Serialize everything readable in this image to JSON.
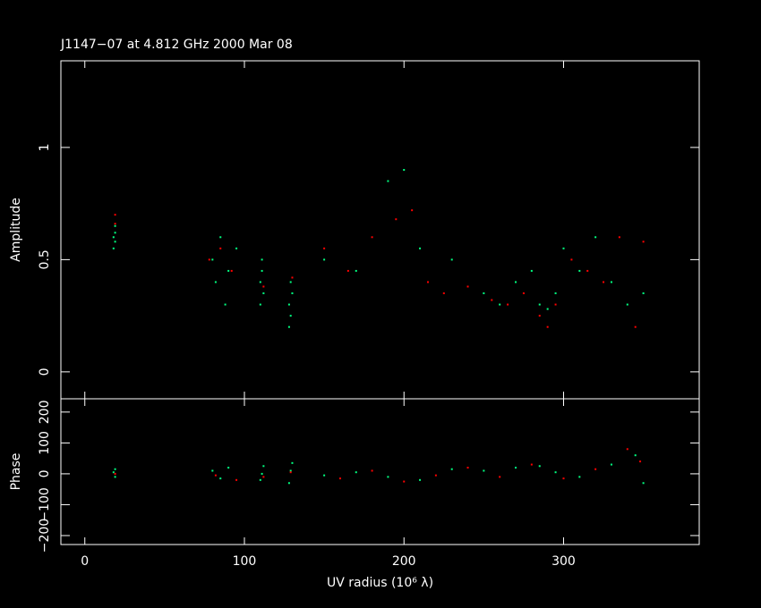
{
  "chart_data": [
    {
      "type": "scatter",
      "title": "J1147−07 at 4.812 GHz 2000 Mar 08",
      "y_label": "Amplitude",
      "xlim": [
        -15,
        385
      ],
      "xticks": [
        0,
        100,
        200,
        300
      ],
      "ylim": [
        -0.12,
        1.386
      ],
      "yticks": [
        0,
        0.5,
        1
      ],
      "series": [
        {
          "color": "#00ff80",
          "x": [
            18,
            18,
            19,
            19,
            19,
            80,
            82,
            85,
            88,
            90,
            95,
            110,
            110,
            111,
            111,
            112,
            128,
            128,
            129,
            129,
            130,
            150,
            170,
            190,
            200,
            210,
            230,
            250,
            260,
            270,
            280,
            285,
            290,
            295,
            300,
            310,
            320,
            330,
            340,
            350
          ],
          "values": [
            0.55,
            0.6,
            0.62,
            0.65,
            0.58,
            0.5,
            0.4,
            0.6,
            0.3,
            0.45,
            0.55,
            0.3,
            0.4,
            0.45,
            0.5,
            0.35,
            0.2,
            0.3,
            0.4,
            0.25,
            0.35,
            0.5,
            0.45,
            0.85,
            0.9,
            0.55,
            0.5,
            0.35,
            0.3,
            0.4,
            0.45,
            0.3,
            0.28,
            0.35,
            0.55,
            0.45,
            0.6,
            0.4,
            0.3,
            0.35
          ]
        },
        {
          "color": "#ff0000",
          "x": [
            19,
            19,
            78,
            85,
            92,
            112,
            130,
            150,
            165,
            180,
            195,
            205,
            215,
            225,
            240,
            255,
            265,
            275,
            285,
            290,
            295,
            305,
            315,
            325,
            335,
            345,
            350
          ],
          "values": [
            0.7,
            0.66,
            0.5,
            0.55,
            0.45,
            0.38,
            0.42,
            0.55,
            0.45,
            0.6,
            0.68,
            0.72,
            0.4,
            0.35,
            0.38,
            0.32,
            0.3,
            0.35,
            0.25,
            0.2,
            0.3,
            0.5,
            0.45,
            0.4,
            0.6,
            0.2,
            0.58
          ]
        }
      ]
    },
    {
      "type": "scatter",
      "x_label": "UV radius  (10⁶ λ)",
      "y_label": "Phase",
      "xlim": [
        -15,
        385
      ],
      "xticks": [
        0,
        100,
        200,
        300
      ],
      "ylim": [
        -229,
        243
      ],
      "yticks": [
        {
          "value": -200,
          "label": "−200"
        },
        {
          "value": -100,
          "label": "−100"
        },
        0,
        100,
        200
      ],
      "series": [
        {
          "color": "#00ff80",
          "x": [
            18,
            19,
            19,
            80,
            85,
            90,
            110,
            111,
            112,
            128,
            129,
            130,
            150,
            170,
            190,
            210,
            230,
            250,
            270,
            285,
            295,
            310,
            330,
            345,
            350
          ],
          "values": [
            5,
            -10,
            15,
            10,
            -15,
            20,
            -20,
            0,
            25,
            -30,
            10,
            35,
            -5,
            5,
            -10,
            -20,
            15,
            10,
            20,
            25,
            5,
            -10,
            30,
            60,
            -30
          ]
        },
        {
          "color": "#ff0000",
          "x": [
            19,
            82,
            95,
            112,
            129,
            160,
            180,
            200,
            220,
            240,
            260,
            280,
            300,
            320,
            340,
            348
          ],
          "values": [
            0,
            -5,
            -20,
            -10,
            5,
            -15,
            10,
            -25,
            -5,
            20,
            -10,
            30,
            -15,
            15,
            80,
            40
          ]
        }
      ]
    }
  ]
}
